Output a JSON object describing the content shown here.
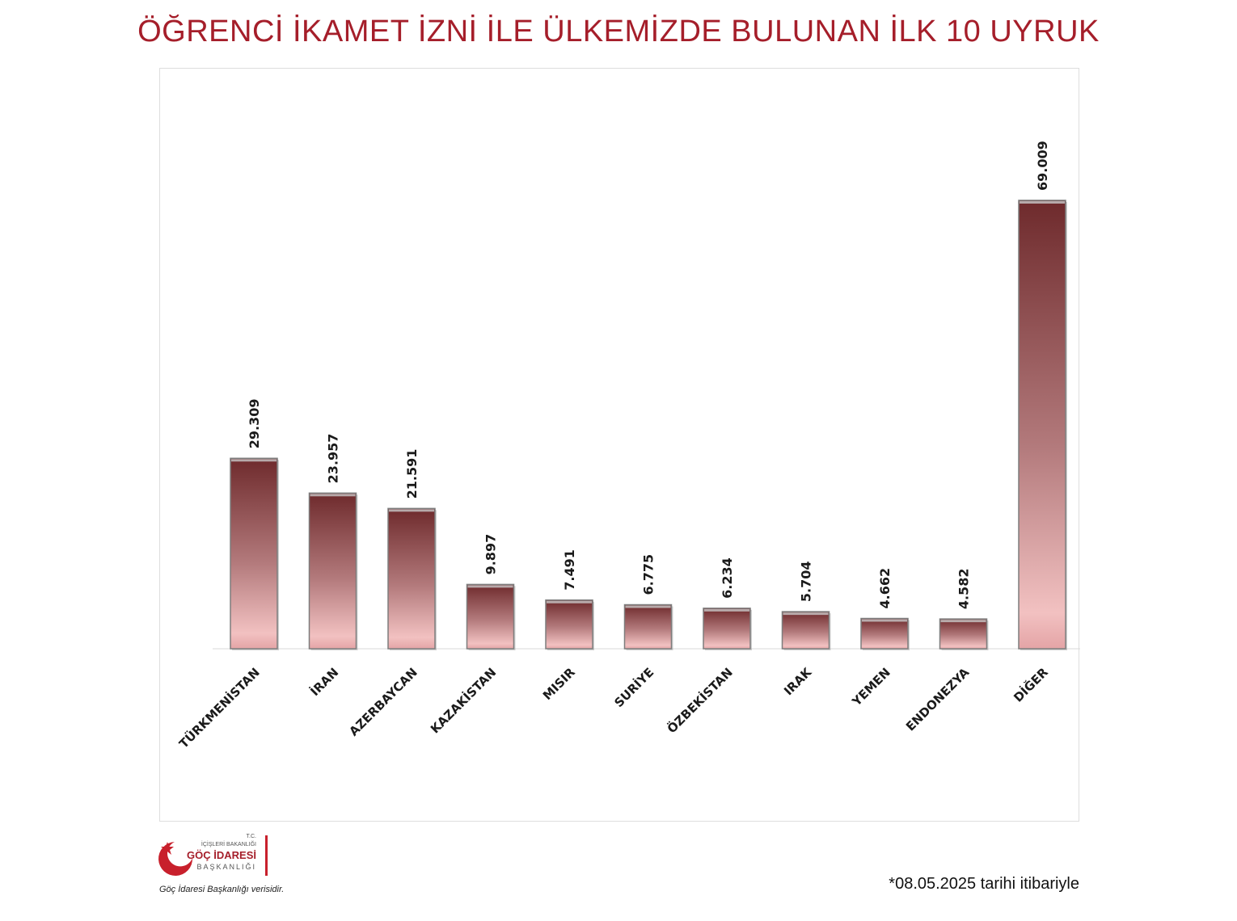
{
  "title": "ÖĞRENCİ İKAMET İZNİ İLE ÜLKEMİZDE BULUNAN İLK 10 UYRUK",
  "chart_data": {
    "type": "bar",
    "title": "ÖĞRENCİ İKAMET İZNİ İLE ÜLKEMİZDE BULUNAN İLK 10 UYRUK",
    "xlabel": "",
    "ylabel": "",
    "categories": [
      "TÜRKMENİSTAN",
      "İRAN",
      "AZERBAYCAN",
      "KAZAKİSTAN",
      "MISIR",
      "SURİYE",
      "ÖZBEKİSTAN",
      "IRAK",
      "YEMEN",
      "ENDONEZYA",
      "DİĞER"
    ],
    "values": [
      29309,
      23957,
      21591,
      9897,
      7491,
      6775,
      6234,
      5704,
      4662,
      4582,
      69009
    ],
    "value_labels": [
      "29.309",
      "23.957",
      "21.591",
      "9.897",
      "7.491",
      "6.775",
      "6.234",
      "5.704",
      "4.662",
      "4.582",
      "69.009"
    ],
    "ylim": [
      0,
      85000
    ],
    "grid": false,
    "legend": "none",
    "bar_color_top": "#6e2a2c",
    "bar_color_bottom": "#f2c1c1"
  },
  "logo": {
    "tc": "T.C.",
    "ministry": "İÇİŞLERİ BAKANLIĞI",
    "org_line1": "GÖÇ İDARESİ",
    "org_line2": "BAŞKANLIĞI"
  },
  "source_note": "Göç İdaresi Başkanlığı verisidir.",
  "date_note": "*08.05.2025 tarihi itibariyle"
}
